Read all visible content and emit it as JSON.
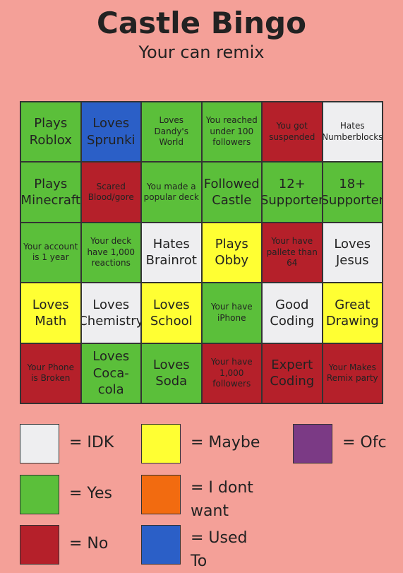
{
  "header": {
    "title": "Castle Bingo",
    "subtitle": "Your can remix"
  },
  "grid": {
    "rows": [
      [
        {
          "label": "Plays Roblox",
          "color": "#5bbf3a"
        },
        {
          "label": "Loves Sprunki",
          "color": "#2b5fc7"
        },
        {
          "label": "Loves Dandy's World",
          "color": "#5bbf3a"
        },
        {
          "label": "You reached under 100 followers",
          "color": "#5bbf3a"
        },
        {
          "label": "You got suspended",
          "color": "#b5202a"
        },
        {
          "label": "Hates Numberblocks",
          "color": "#eeeef0"
        }
      ],
      [
        {
          "label": "Plays Minecraft",
          "color": "#5bbf3a"
        },
        {
          "label": "Scared Blood/gore",
          "color": "#b5202a"
        },
        {
          "label": "You made a popular deck",
          "color": "#5bbf3a"
        },
        {
          "label": "Followed Castle",
          "color": "#5bbf3a"
        },
        {
          "label": "12+ Supporter",
          "color": "#5bbf3a"
        },
        {
          "label": "18+ Supporter",
          "color": "#5bbf3a"
        }
      ],
      [
        {
          "label": "Your account is 1 year",
          "color": "#5bbf3a"
        },
        {
          "label": "Your deck have 1,000 reactions",
          "color": "#5bbf3a"
        },
        {
          "label": "Hates Brainrot",
          "color": "#eeeef0"
        },
        {
          "label": "Plays Obby",
          "color": "#ffff33"
        },
        {
          "label": "Your have pallete than 64",
          "color": "#b5202a"
        },
        {
          "label": "Loves Jesus",
          "color": "#eeeef0"
        }
      ],
      [
        {
          "label": "Loves Math",
          "color": "#ffff33"
        },
        {
          "label": "Loves Chemistry",
          "color": "#eeeef0"
        },
        {
          "label": "Loves School",
          "color": "#ffff33"
        },
        {
          "label": "Your have iPhone",
          "color": "#5bbf3a"
        },
        {
          "label": "Good Coding",
          "color": "#eeeef0"
        },
        {
          "label": "Great Drawing",
          "color": "#ffff33"
        }
      ],
      [
        {
          "label": "Your Phone is Broken",
          "color": "#b5202a"
        },
        {
          "label": "Loves Coca-cola",
          "color": "#5bbf3a"
        },
        {
          "label": "Loves Soda",
          "color": "#5bbf3a"
        },
        {
          "label": "Your have 1,000 followers",
          "color": "#b5202a"
        },
        {
          "label": "Expert Coding",
          "color": "#b5202a"
        },
        {
          "label": "Your Makes Remix party",
          "color": "#b5202a"
        }
      ]
    ]
  },
  "legend": [
    {
      "label": "= IDK",
      "color": "#eeeef0"
    },
    {
      "label": "= Maybe",
      "color": "#ffff33"
    },
    {
      "label": "= Ofc",
      "color": "#7b3a85"
    },
    {
      "label": "= Yes",
      "color": "#5bbf3a"
    },
    {
      "label": "= I dont want",
      "color": "#f26b10"
    },
    {
      "label": "= No",
      "color": "#b5202a"
    },
    {
      "label": "= Used To",
      "color": "#2b5fc7"
    }
  ]
}
